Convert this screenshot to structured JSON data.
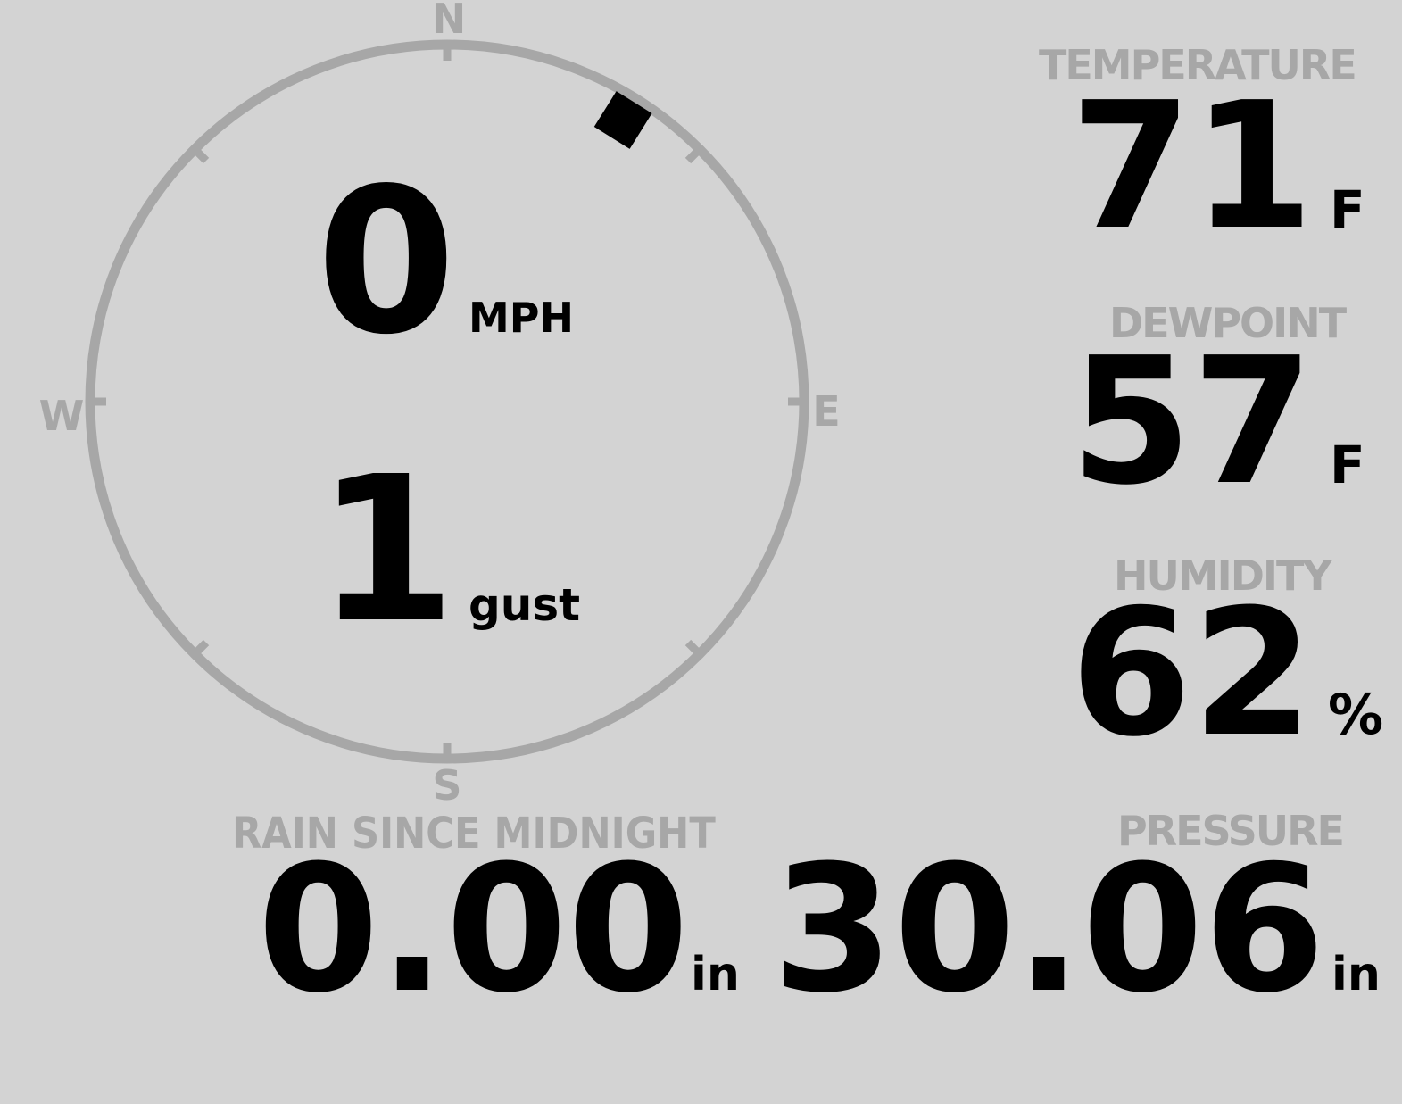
{
  "colors": {
    "background": "#d3d3d3",
    "muted_gray": "#a7a7a7",
    "value_black": "#000000"
  },
  "wind": {
    "compass": {
      "north": "N",
      "east": "E",
      "south": "S",
      "west": "W",
      "direction_deg": 32
    },
    "speed": {
      "value": "0",
      "unit": "MPH"
    },
    "gust": {
      "value": "1",
      "unit": "gust"
    }
  },
  "metrics": {
    "temperature": {
      "label": "TEMPERATURE",
      "value": "71",
      "unit": "F"
    },
    "dewpoint": {
      "label": "DEWPOINT",
      "value": "57",
      "unit": "F"
    },
    "humidity": {
      "label": "HUMIDITY",
      "value": "62",
      "unit": "%"
    },
    "rain": {
      "label": "RAIN SINCE MIDNIGHT",
      "value": "0.00",
      "unit": "in"
    },
    "pressure": {
      "label": "PRESSURE",
      "value": "30.06",
      "unit": "in"
    }
  }
}
